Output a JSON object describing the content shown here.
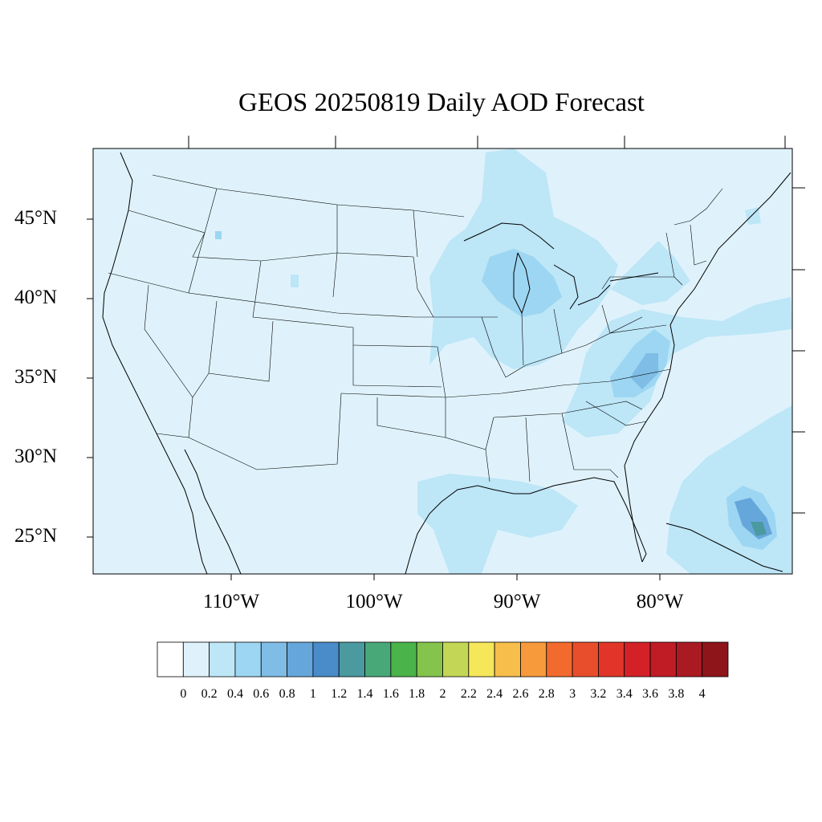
{
  "map": {
    "title": "GEOS 20250819 Daily AOD Forecast",
    "variable": "AOD",
    "projection": "Lambert Conformal, contiguous United States",
    "region": "Contiguous United States",
    "latitude_labels": [
      "45°N",
      "40°N",
      "35°N",
      "30°N",
      "25°N"
    ],
    "longitude_labels": [
      "110°W",
      "100°W",
      "90°W",
      "80°W"
    ],
    "colors": {
      "background": "#dff2fb",
      "boundary": "#000000"
    },
    "features": [
      {
        "name": "Great Lakes / Upper Midwest plume",
        "level": "0.4-0.6"
      },
      {
        "name": "Mid-Atlantic / Virginia coast plume",
        "level": "0.6-0.8"
      },
      {
        "name": "Bahamas maximum",
        "level": "1.2-1.6"
      },
      {
        "name": "Gulf coast / Texas plume",
        "level": "0.2-0.4"
      }
    ]
  },
  "colorbar": {
    "labels": [
      "0",
      "0.2",
      "0.4",
      "0.6",
      "0.8",
      "1",
      "1.2",
      "1.4",
      "1.6",
      "1.8",
      "2",
      "2.2",
      "2.4",
      "2.6",
      "2.8",
      "3",
      "3.2",
      "3.4",
      "3.6",
      "3.8",
      "4"
    ],
    "colors": [
      "#ffffff",
      "#dff2fb",
      "#bde6f7",
      "#9cd6f2",
      "#7fbde6",
      "#66a7db",
      "#4a8bc9",
      "#4a9aa0",
      "#48a878",
      "#4ab34a",
      "#84c44c",
      "#c4d656",
      "#f6e65a",
      "#f7be4c",
      "#f69a3c",
      "#f26a2e",
      "#e84e2c",
      "#e03528",
      "#d42128",
      "#c01c26",
      "#aa1a22",
      "#8e1519"
    ]
  }
}
